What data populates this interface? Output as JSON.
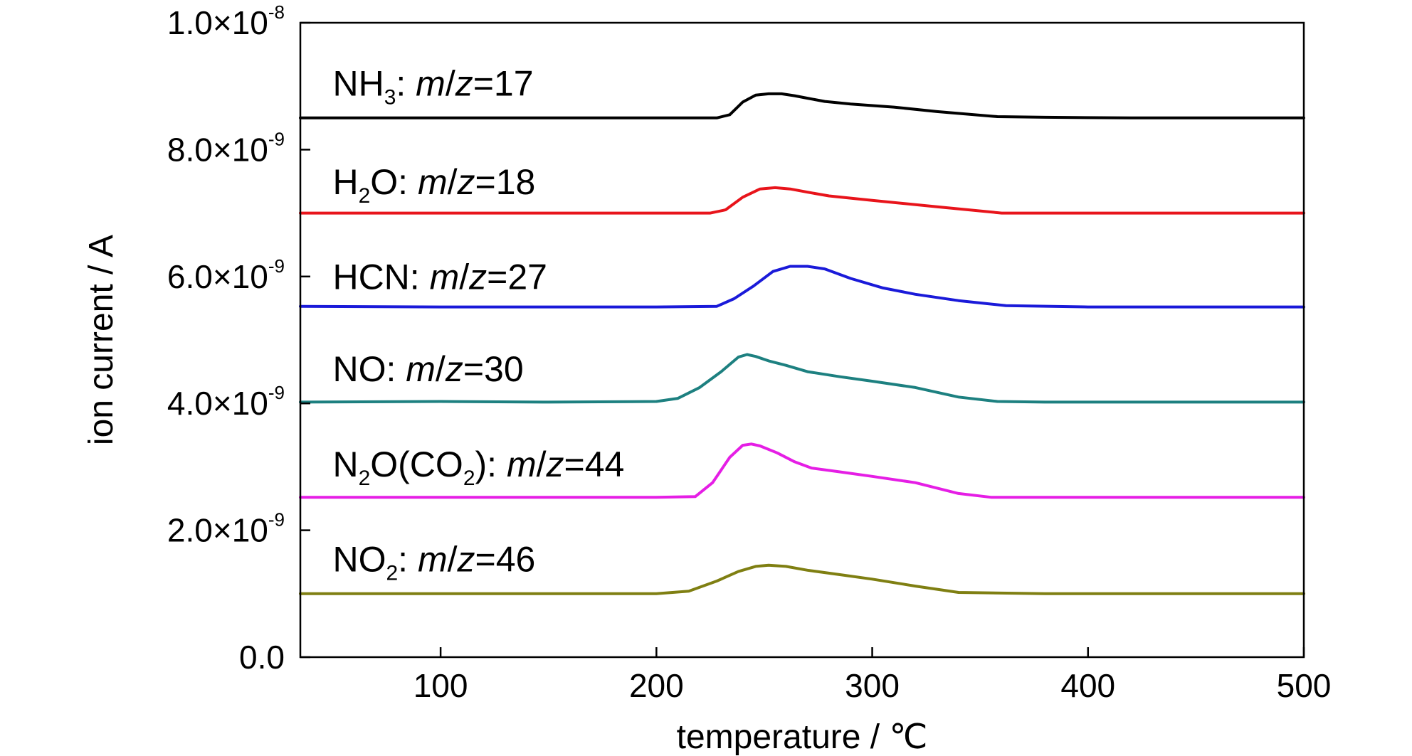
{
  "chart_data": {
    "type": "line",
    "xlabel": "temperature / ℃",
    "ylabel": "ion current / A",
    "xlim": [
      35,
      500
    ],
    "ylim": [
      0,
      1e-08
    ],
    "grid": false,
    "legend": "none",
    "x_ticks": [
      {
        "value": 100,
        "label": "100"
      },
      {
        "value": 200,
        "label": "200"
      },
      {
        "value": 300,
        "label": "300"
      },
      {
        "value": 400,
        "label": "400"
      },
      {
        "value": 500,
        "label": "500"
      }
    ],
    "y_ticks": [
      {
        "value": 0,
        "mantissa": "0.0",
        "exponent": ""
      },
      {
        "value": 2e-09,
        "mantissa": "2.0×10",
        "exponent": "-9"
      },
      {
        "value": 4e-09,
        "mantissa": "4.0×10",
        "exponent": "-9"
      },
      {
        "value": 6e-09,
        "mantissa": "6.0×10",
        "exponent": "-9"
      },
      {
        "value": 8e-09,
        "mantissa": "8.0×10",
        "exponent": "-9"
      },
      {
        "value": 1e-08,
        "mantissa": "1.0×10",
        "exponent": "-8"
      }
    ],
    "series": [
      {
        "name": "NH3: m/z=17",
        "label_parts": [
          {
            "t": "NH"
          },
          {
            "t": "3",
            "sub": true
          },
          {
            "t": ": "
          },
          {
            "t": "m",
            "italic": true
          },
          {
            "t": "/"
          },
          {
            "t": "z",
            "italic": true
          },
          {
            "t": "=17"
          }
        ],
        "label_anchor": [
          50,
          8.85e-09
        ],
        "color": "#000000",
        "x": [
          35,
          100,
          200,
          228,
          234,
          240,
          246,
          252,
          258,
          264,
          270,
          278,
          290,
          310,
          330,
          358,
          380,
          420,
          460,
          500
        ],
        "y": [
          8.5e-09,
          8.5e-09,
          8.5e-09,
          8.5e-09,
          8.55e-09,
          8.75e-09,
          8.86e-09,
          8.88e-09,
          8.88e-09,
          8.85e-09,
          8.81e-09,
          8.76e-09,
          8.72e-09,
          8.67e-09,
          8.6e-09,
          8.52e-09,
          8.51e-09,
          8.5e-09,
          8.5e-09,
          8.5e-09
        ]
      },
      {
        "name": "H2O: m/z=18",
        "label_parts": [
          {
            "t": "H"
          },
          {
            "t": "2",
            "sub": true
          },
          {
            "t": "O: "
          },
          {
            "t": "m",
            "italic": true
          },
          {
            "t": "/"
          },
          {
            "t": "z",
            "italic": true
          },
          {
            "t": "=18"
          }
        ],
        "label_anchor": [
          50,
          7.3e-09
        ],
        "color": "#e8141b",
        "x": [
          35,
          100,
          200,
          225,
          232,
          240,
          248,
          255,
          262,
          270,
          280,
          300,
          330,
          360,
          400,
          460,
          500
        ],
        "y": [
          7e-09,
          7e-09,
          7e-09,
          7e-09,
          7.05e-09,
          7.25e-09,
          7.38e-09,
          7.4e-09,
          7.38e-09,
          7.33e-09,
          7.27e-09,
          7.2e-09,
          7.1e-09,
          7e-09,
          7e-09,
          7e-09,
          7e-09
        ]
      },
      {
        "name": "HCN: m/z=27",
        "label_parts": [
          {
            "t": "HCN: "
          },
          {
            "t": "m",
            "italic": true
          },
          {
            "t": "/"
          },
          {
            "t": "z",
            "italic": true
          },
          {
            "t": "=27"
          }
        ],
        "label_anchor": [
          50,
          5.8e-09
        ],
        "color": "#1a1ad9",
        "x": [
          35,
          100,
          200,
          228,
          236,
          245,
          254,
          262,
          270,
          278,
          290,
          305,
          320,
          340,
          362,
          400,
          460,
          500
        ],
        "y": [
          5.53e-09,
          5.52e-09,
          5.52e-09,
          5.53e-09,
          5.65e-09,
          5.85e-09,
          6.08e-09,
          6.16e-09,
          6.16e-09,
          6.12e-09,
          5.97e-09,
          5.82e-09,
          5.72e-09,
          5.62e-09,
          5.54e-09,
          5.52e-09,
          5.52e-09,
          5.52e-09
        ]
      },
      {
        "name": "NO: m/z=30",
        "label_parts": [
          {
            "t": "NO: "
          },
          {
            "t": "m",
            "italic": true
          },
          {
            "t": "/"
          },
          {
            "t": "z",
            "italic": true
          },
          {
            "t": "=30"
          }
        ],
        "label_anchor": [
          50,
          4.35e-09
        ],
        "color": "#1d8080",
        "x": [
          35,
          100,
          150,
          200,
          210,
          220,
          230,
          238,
          242,
          246,
          252,
          260,
          270,
          285,
          300,
          320,
          340,
          358,
          380,
          420,
          460,
          500
        ],
        "y": [
          4.02e-09,
          4.03e-09,
          4.02e-09,
          4.03e-09,
          4.08e-09,
          4.25e-09,
          4.5e-09,
          4.73e-09,
          4.77e-09,
          4.74e-09,
          4.67e-09,
          4.6e-09,
          4.5e-09,
          4.42e-09,
          4.35e-09,
          4.25e-09,
          4.1e-09,
          4.03e-09,
          4.02e-09,
          4.02e-09,
          4.02e-09,
          4.02e-09
        ]
      },
      {
        "name": "N2O(CO2): m/z=44",
        "label_parts": [
          {
            "t": "N"
          },
          {
            "t": "2",
            "sub": true
          },
          {
            "t": "O(CO"
          },
          {
            "t": "2",
            "sub": true
          },
          {
            "t": "): "
          },
          {
            "t": "m",
            "italic": true
          },
          {
            "t": "/"
          },
          {
            "t": "z",
            "italic": true
          },
          {
            "t": "=44"
          }
        ],
        "label_anchor": [
          50,
          2.85e-09
        ],
        "color": "#e51ee5",
        "x": [
          35,
          100,
          200,
          218,
          226,
          234,
          240,
          244,
          248,
          256,
          264,
          272,
          285,
          300,
          320,
          340,
          355,
          380,
          420,
          460,
          500
        ],
        "y": [
          2.52e-09,
          2.52e-09,
          2.52e-09,
          2.53e-09,
          2.75e-09,
          3.15e-09,
          3.34e-09,
          3.36e-09,
          3.33e-09,
          3.22e-09,
          3.08e-09,
          2.98e-09,
          2.92e-09,
          2.85e-09,
          2.75e-09,
          2.58e-09,
          2.52e-09,
          2.52e-09,
          2.52e-09,
          2.52e-09,
          2.52e-09
        ]
      },
      {
        "name": "NO2: m/z=46",
        "label_parts": [
          {
            "t": "NO"
          },
          {
            "t": "2",
            "sub": true
          },
          {
            "t": ": "
          },
          {
            "t": "m",
            "italic": true
          },
          {
            "t": "/"
          },
          {
            "t": "z",
            "italic": true
          },
          {
            "t": "=46"
          }
        ],
        "label_anchor": [
          50,
          1.35e-09
        ],
        "color": "#7f7f12",
        "x": [
          35,
          100,
          150,
          200,
          215,
          228,
          238,
          246,
          252,
          260,
          270,
          285,
          300,
          320,
          340,
          380,
          420,
          460,
          500
        ],
        "y": [
          1e-09,
          1e-09,
          1e-09,
          1e-09,
          1.04e-09,
          1.2e-09,
          1.35e-09,
          1.43e-09,
          1.45e-09,
          1.43e-09,
          1.37e-09,
          1.3e-09,
          1.23e-09,
          1.12e-09,
          1.02e-09,
          1e-09,
          1e-09,
          1e-09,
          1e-09
        ]
      }
    ]
  }
}
